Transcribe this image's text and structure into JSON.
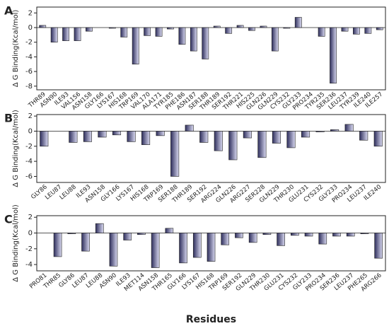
{
  "chart_data": [
    {
      "type": "bar",
      "panel_label": "A",
      "ylabel": "Δ G Binding(Kcal/mol)",
      "color": "#2e2e5c",
      "categories": [
        "THR89",
        "ASN90",
        "ILE93",
        "VAL156",
        "ASN158",
        "GLY166",
        "LYS167",
        "HIS168",
        "TRP169",
        "VAL170",
        "ALA171",
        "TYR185",
        "PHE186",
        "ASN187",
        "SER188",
        "THR189",
        "SER192",
        "THR221",
        "HIS225",
        "GLN226",
        "GLN229",
        "CYS232",
        "GLY233",
        "PRO234",
        "TYR235",
        "SER236",
        "LEU237",
        "TYR239",
        "ILE240",
        "ILE257"
      ],
      "values": [
        0.3,
        -2.0,
        -1.8,
        -1.8,
        -0.5,
        0,
        -0.1,
        -1.3,
        -5.0,
        -1.1,
        -1.2,
        -0.2,
        -2.3,
        -3.2,
        -4.3,
        0.2,
        -0.8,
        0.3,
        -0.4,
        0.2,
        -3.2,
        -0.1,
        1.4,
        0,
        -1.2,
        -7.6,
        -0.5,
        -0.9,
        -0.8,
        -0.3
      ],
      "ylim": [
        -8.5,
        2.8
      ],
      "yticks": [
        2,
        0,
        -2,
        -4,
        -6,
        -8
      ]
    },
    {
      "type": "bar",
      "panel_label": "B",
      "ylabel": "Δ G Binding(Kcal/mol)",
      "color": "#2e2e5c",
      "categories": [
        "GLY86",
        "LEU87",
        "LEU88",
        "ILE93",
        "ASN158",
        "GLY166",
        "LYS167",
        "HIS168",
        "TRP169",
        "SER188",
        "THR189",
        "SER192",
        "ARG224",
        "GLN226",
        "ARG227",
        "SER228",
        "GLN229",
        "THR230",
        "GLU231",
        "CYS232",
        "GLY233",
        "PRO234",
        "LEU237",
        "ILE240"
      ],
      "values": [
        -2.0,
        0,
        -1.5,
        -1.4,
        -0.8,
        -0.5,
        -1.4,
        -1.8,
        -0.6,
        -6.0,
        0.8,
        -1.5,
        -2.6,
        -3.8,
        -0.9,
        -3.5,
        -1.6,
        -2.2,
        -0.8,
        -0.1,
        0.2,
        0.9,
        -1.2,
        -2.0
      ],
      "ylim": [
        -6.8,
        2.2
      ],
      "yticks": [
        2,
        0,
        -2,
        -4,
        -6
      ]
    },
    {
      "type": "bar",
      "panel_label": "C",
      "ylabel": "Δ G Binding(Kcal/mol)",
      "xlabel": "Residues",
      "color": "#2e2e5c",
      "categories": [
        "PRO81",
        "THR85",
        "GLY86",
        "LEU87",
        "LEU88",
        "ASN90",
        "ILE93",
        "MET114",
        "ASN158",
        "THR165",
        "GLY166",
        "LYS167",
        "HIS168",
        "TRP169",
        "SER192",
        "GLN229",
        "THR230",
        "GLU231",
        "CYS232",
        "GLY233",
        "PRO234",
        "SER236",
        "LEU237",
        "PHE265",
        "ARG266"
      ],
      "values": [
        0,
        -3.0,
        -0.1,
        -2.3,
        1.2,
        -4.2,
        -0.9,
        -0.2,
        -4.4,
        0.6,
        -3.8,
        -3.1,
        -3.6,
        -1.5,
        -0.6,
        -1.2,
        -0.2,
        -1.6,
        -0.3,
        -0.4,
        -1.4,
        -0.4,
        -0.4,
        -0.1,
        -3.2
      ],
      "ylim": [
        -4.8,
        2.2
      ],
      "yticks": [
        2,
        0,
        -2,
        -4
      ]
    }
  ]
}
